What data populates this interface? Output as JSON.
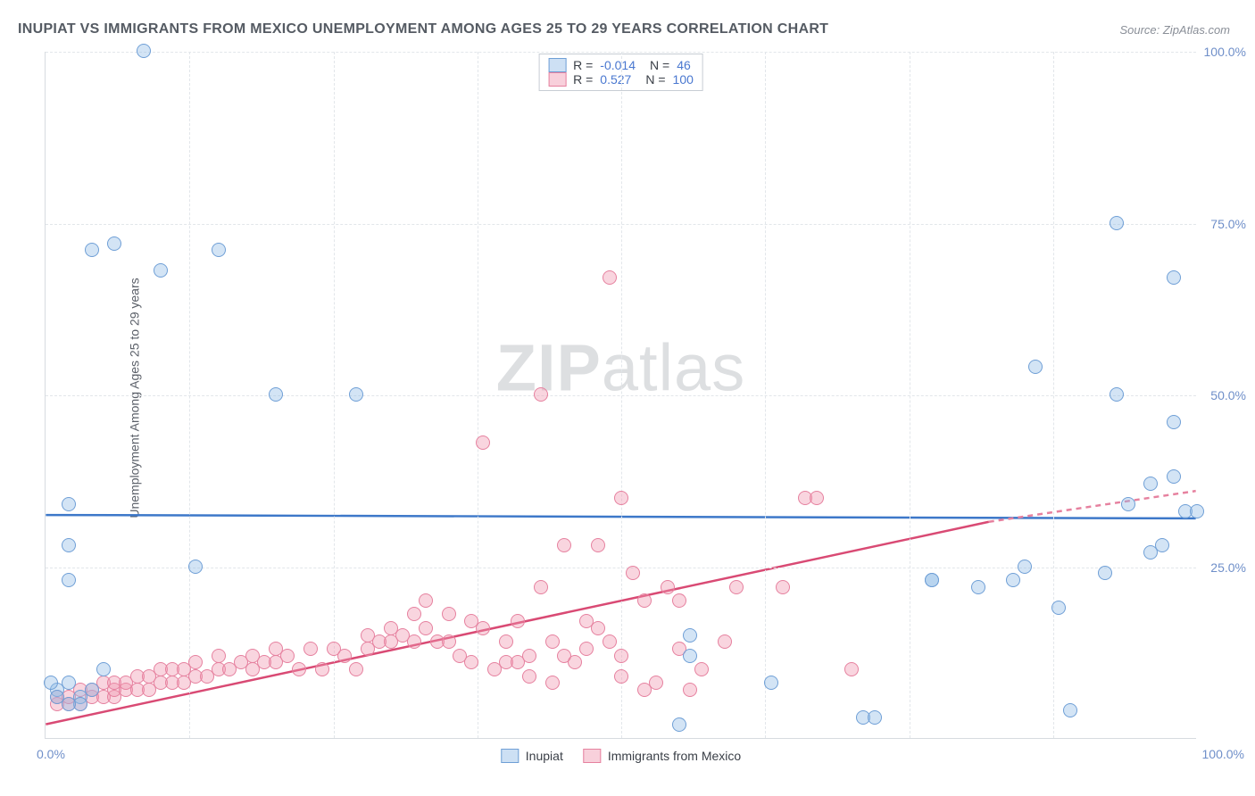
{
  "title": "INUPIAT VS IMMIGRANTS FROM MEXICO UNEMPLOYMENT AMONG AGES 25 TO 29 YEARS CORRELATION CHART",
  "source": "Source: ZipAtlas.com",
  "ylabel": "Unemployment Among Ages 25 to 29 years",
  "watermark_bold": "ZIP",
  "watermark_rest": "atlas",
  "chart": {
    "type": "scatter",
    "xlim": [
      0,
      100
    ],
    "ylim": [
      0,
      100
    ],
    "yticks": [
      25,
      50,
      75,
      100
    ],
    "ytick_labels": [
      "25.0%",
      "50.0%",
      "75.0%",
      "100.0%"
    ],
    "xticks_minor": [
      12.5,
      25,
      37.5,
      50,
      62.5,
      75,
      87.5
    ],
    "xtick_0_label": "0.0%",
    "xtick_100_label": "100.0%",
    "background_color": "#ffffff",
    "grid_color": "#e2e6ea",
    "series_a": {
      "label": "Inupiat",
      "color_fill": "rgba(145,187,231,0.4)",
      "color_stroke": "#6f9fd6",
      "trend_stroke": "#3d78c9",
      "R": "-0.014",
      "N": "46",
      "trend": {
        "x1": 0,
        "y1": 32.5,
        "x2": 100,
        "y2": 32.0
      },
      "points": [
        [
          8.5,
          100
        ],
        [
          4,
          71
        ],
        [
          6,
          72
        ],
        [
          10,
          68
        ],
        [
          15,
          71
        ],
        [
          2,
          34
        ],
        [
          2,
          28
        ],
        [
          2,
          23
        ],
        [
          5,
          10
        ],
        [
          13,
          25
        ],
        [
          20,
          50
        ],
        [
          27,
          50
        ],
        [
          56,
          12
        ],
        [
          56,
          15
        ],
        [
          55,
          2
        ],
        [
          63,
          8
        ],
        [
          71,
          3
        ],
        [
          72,
          3
        ],
        [
          77,
          23
        ],
        [
          77,
          23
        ],
        [
          81,
          22
        ],
        [
          84,
          23
        ],
        [
          86,
          54
        ],
        [
          85,
          25
        ],
        [
          88,
          19
        ],
        [
          89,
          4
        ],
        [
          93,
          75
        ],
        [
          93,
          50
        ],
        [
          92,
          24
        ],
        [
          94,
          34
        ],
        [
          96,
          27
        ],
        [
          96,
          37
        ],
        [
          97,
          28
        ],
        [
          98,
          38
        ],
        [
          99,
          33
        ],
        [
          100,
          33
        ],
        [
          98,
          46
        ],
        [
          98,
          67
        ],
        [
          3,
          6
        ],
        [
          1,
          7
        ],
        [
          2,
          8
        ],
        [
          4,
          7
        ],
        [
          1,
          6
        ],
        [
          3,
          5
        ],
        [
          0.5,
          8
        ],
        [
          2,
          5
        ]
      ]
    },
    "series_b": {
      "label": "Immigrants from Mexico",
      "color_fill": "rgba(240,150,175,0.4)",
      "color_stroke": "#e6819f",
      "trend_stroke": "#d94a74",
      "R": "0.527",
      "N": "100",
      "trend": {
        "x1": 0,
        "y1": 2,
        "x2": 82,
        "y2": 31.5
      },
      "trend_ext": {
        "x1": 82,
        "y1": 31.5,
        "x2": 100,
        "y2": 36
      },
      "points": [
        [
          1,
          5
        ],
        [
          1,
          6
        ],
        [
          2,
          5
        ],
        [
          2,
          6
        ],
        [
          3,
          5
        ],
        [
          3,
          7
        ],
        [
          4,
          6
        ],
        [
          4,
          7
        ],
        [
          5,
          6
        ],
        [
          5,
          8
        ],
        [
          6,
          6
        ],
        [
          6,
          7
        ],
        [
          6,
          8
        ],
        [
          7,
          7
        ],
        [
          7,
          8
        ],
        [
          8,
          7
        ],
        [
          8,
          9
        ],
        [
          9,
          7
        ],
        [
          9,
          9
        ],
        [
          10,
          8
        ],
        [
          10,
          10
        ],
        [
          11,
          8
        ],
        [
          11,
          10
        ],
        [
          12,
          8
        ],
        [
          12,
          10
        ],
        [
          13,
          9
        ],
        [
          13,
          11
        ],
        [
          14,
          9
        ],
        [
          15,
          10
        ],
        [
          15,
          12
        ],
        [
          16,
          10
        ],
        [
          17,
          11
        ],
        [
          18,
          10
        ],
        [
          18,
          12
        ],
        [
          19,
          11
        ],
        [
          20,
          11
        ],
        [
          20,
          13
        ],
        [
          21,
          12
        ],
        [
          22,
          10
        ],
        [
          23,
          13
        ],
        [
          24,
          10
        ],
        [
          25,
          13
        ],
        [
          26,
          12
        ],
        [
          27,
          10
        ],
        [
          28,
          13
        ],
        [
          28,
          15
        ],
        [
          29,
          14
        ],
        [
          30,
          14
        ],
        [
          30,
          16
        ],
        [
          31,
          15
        ],
        [
          32,
          14
        ],
        [
          32,
          18
        ],
        [
          33,
          16
        ],
        [
          33,
          20
        ],
        [
          34,
          14
        ],
        [
          35,
          18
        ],
        [
          35,
          14
        ],
        [
          36,
          12
        ],
        [
          37,
          11
        ],
        [
          37,
          17
        ],
        [
          38,
          16
        ],
        [
          38,
          43
        ],
        [
          39,
          10
        ],
        [
          40,
          11
        ],
        [
          40,
          14
        ],
        [
          41,
          11
        ],
        [
          41,
          17
        ],
        [
          42,
          9
        ],
        [
          42,
          12
        ],
        [
          43,
          22
        ],
        [
          43,
          50
        ],
        [
          44,
          8
        ],
        [
          44,
          14
        ],
        [
          45,
          12
        ],
        [
          45,
          28
        ],
        [
          46,
          11
        ],
        [
          47,
          17
        ],
        [
          47,
          13
        ],
        [
          48,
          28
        ],
        [
          48,
          16
        ],
        [
          49,
          14
        ],
        [
          49,
          67
        ],
        [
          50,
          9
        ],
        [
          50,
          12
        ],
        [
          50,
          35
        ],
        [
          51,
          24
        ],
        [
          52,
          7
        ],
        [
          52,
          20
        ],
        [
          53,
          8
        ],
        [
          54,
          22
        ],
        [
          55,
          13
        ],
        [
          55,
          20
        ],
        [
          56,
          7
        ],
        [
          57,
          10
        ],
        [
          59,
          14
        ],
        [
          60,
          22
        ],
        [
          64,
          22
        ],
        [
          66,
          35
        ],
        [
          67,
          35
        ],
        [
          70,
          10
        ]
      ]
    }
  },
  "legend_bottom": {
    "a": "Inupiat",
    "b": "Immigrants from Mexico"
  },
  "legend_top": {
    "r_label": "R =",
    "n_label": "N ="
  }
}
